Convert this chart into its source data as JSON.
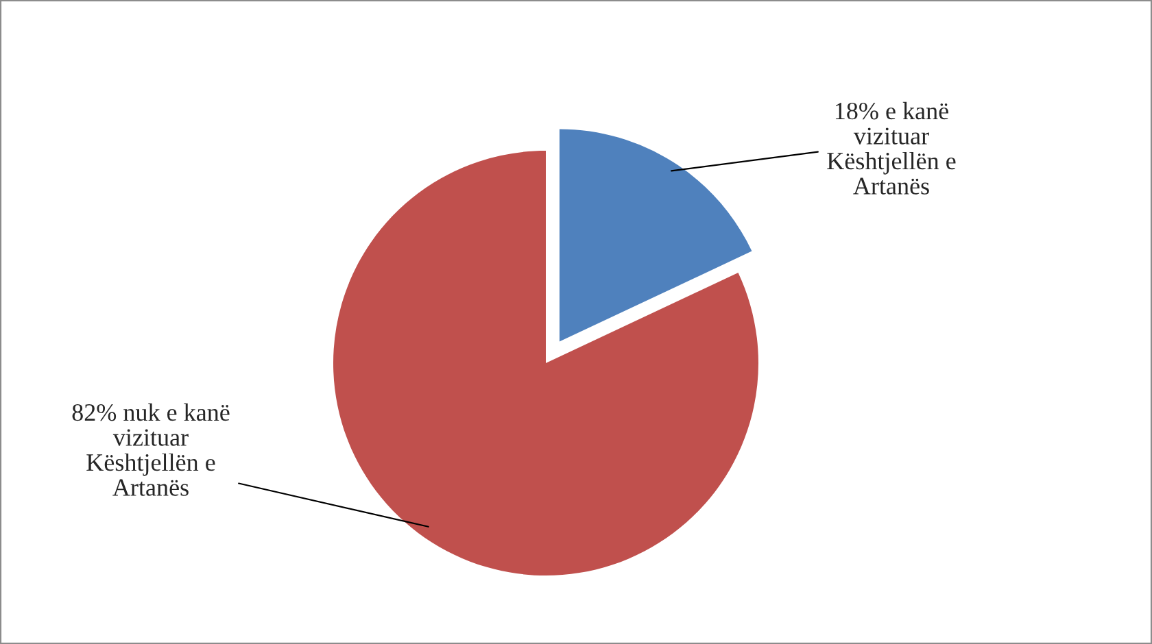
{
  "chart_data": {
    "type": "pie",
    "categories": [
      "18% e kanë\nvizituar\nKështjellën e\nArtanës",
      "82% nuk e kanë\nvizituar\nKështjellën e\nArtanës"
    ],
    "values": [
      18,
      82
    ],
    "colors": [
      "#4f81bd",
      "#c0504d"
    ],
    "legend": false
  }
}
